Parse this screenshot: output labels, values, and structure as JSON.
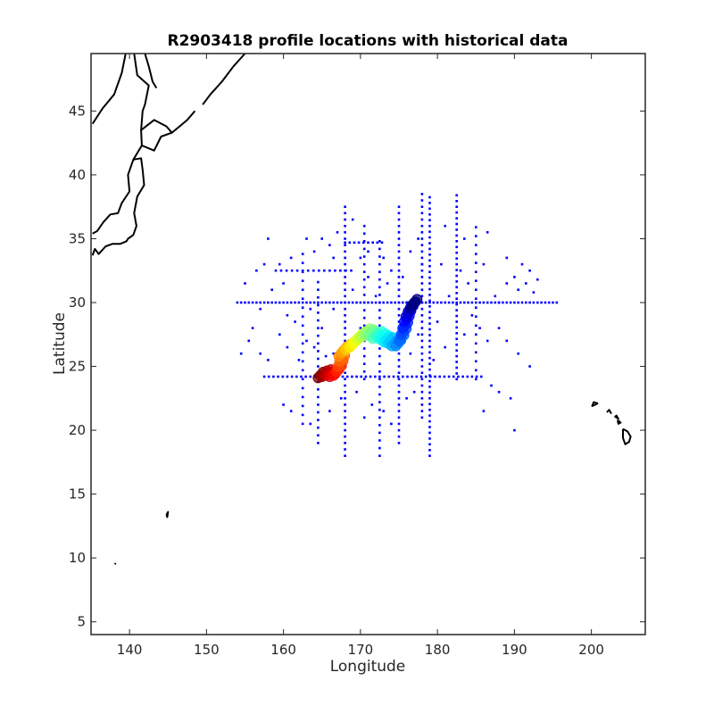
{
  "chart_data": {
    "type": "scatter",
    "title": "R2903418 profile locations with historical data",
    "xlabel": "Longitude",
    "ylabel": "Latitude",
    "xlim": [
      135,
      207
    ],
    "ylim": [
      4,
      49.5
    ],
    "xticks": [
      140,
      150,
      160,
      170,
      180,
      190,
      200
    ],
    "yticks": [
      5,
      10,
      15,
      20,
      25,
      30,
      35,
      40,
      45
    ],
    "grid": false,
    "colors": {
      "historical": "#0000ff",
      "coast": "#000000",
      "axes": "#262626"
    },
    "historical_transects": {
      "zonal": [
        {
          "lat": 30,
          "lon_range": [
            154,
            195.5
          ],
          "step": 0.5
        },
        {
          "lat": 24.2,
          "lon_range": [
            157.5,
            186
          ],
          "step": 0.6
        },
        {
          "lat": 32.5,
          "lon_range": [
            159,
            169
          ],
          "step": 0.7
        },
        {
          "lat": 34.7,
          "lon_range": [
            168,
            173
          ],
          "step": 0.6
        }
      ],
      "meridional": [
        {
          "lon": 179,
          "lat_range": [
            18,
            38.5
          ],
          "step": 0.45
        },
        {
          "lon": 182.5,
          "lat_range": [
            24,
            38.5
          ],
          "step": 0.45
        },
        {
          "lon": 175,
          "lat_range": [
            19,
            37.5
          ],
          "step": 0.5
        },
        {
          "lon": 168,
          "lat_range": [
            18,
            37.5
          ],
          "step": 0.5
        },
        {
          "lon": 164.5,
          "lat_range": [
            19,
            32
          ],
          "step": 0.6
        },
        {
          "lon": 172.5,
          "lat_range": [
            18,
            35
          ],
          "step": 0.6
        },
        {
          "lon": 178,
          "lat_range": [
            21,
            38.5
          ],
          "step": 0.5
        },
        {
          "lon": 162.5,
          "lat_range": [
            20.5,
            34
          ],
          "step": 0.7
        },
        {
          "lon": 185,
          "lat_range": [
            24,
            36
          ],
          "step": 0.7
        },
        {
          "lon": 170.5,
          "lat_range": [
            24,
            36.5
          ],
          "step": 0.6
        }
      ],
      "scatter": [
        [
          155,
          31.5
        ],
        [
          156,
          28
        ],
        [
          157,
          26
        ],
        [
          158,
          25.5
        ],
        [
          159.5,
          27.5
        ],
        [
          160.5,
          29
        ],
        [
          161.5,
          28.5
        ],
        [
          163,
          27
        ],
        [
          164,
          26.5
        ],
        [
          165.5,
          25.8
        ],
        [
          166.5,
          26
        ],
        [
          157,
          29.5
        ],
        [
          156.5,
          32.5
        ],
        [
          157.5,
          33
        ],
        [
          158.5,
          31
        ],
        [
          160,
          31.5
        ],
        [
          161,
          33.5
        ],
        [
          163,
          35
        ],
        [
          164,
          34
        ],
        [
          165,
          35
        ],
        [
          166,
          34.5
        ],
        [
          167,
          35.5
        ],
        [
          169,
          36.5
        ],
        [
          170,
          33.5
        ],
        [
          171,
          32
        ],
        [
          173.5,
          31.5
        ],
        [
          174,
          32.5
        ],
        [
          175.5,
          32
        ],
        [
          176.5,
          34
        ],
        [
          177.5,
          35
        ],
        [
          180.5,
          33
        ],
        [
          181,
          36
        ],
        [
          183.5,
          35
        ],
        [
          184,
          31.5
        ],
        [
          186,
          33
        ],
        [
          187.5,
          30.5
        ],
        [
          189,
          31.5
        ],
        [
          190,
          32
        ],
        [
          190.5,
          31
        ],
        [
          191,
          33
        ],
        [
          191.5,
          31.5
        ],
        [
          192,
          32.5
        ],
        [
          192.5,
          30.8
        ],
        [
          193,
          31.8
        ],
        [
          188,
          28
        ],
        [
          189,
          27
        ],
        [
          190.5,
          26
        ],
        [
          192,
          25
        ],
        [
          185.5,
          28
        ],
        [
          186.5,
          27
        ],
        [
          187,
          23.5
        ],
        [
          188,
          23
        ],
        [
          189.5,
          22.5
        ],
        [
          190,
          20
        ],
        [
          186,
          21.5
        ],
        [
          160,
          22
        ],
        [
          161,
          21.5
        ],
        [
          163.5,
          20.5
        ],
        [
          166,
          21.5
        ],
        [
          167.5,
          22.5
        ],
        [
          169.5,
          23
        ],
        [
          170.5,
          21
        ],
        [
          171.5,
          22
        ],
        [
          173,
          21.5
        ],
        [
          174,
          20.5
        ],
        [
          176,
          22.5
        ],
        [
          177,
          23
        ],
        [
          179.5,
          25.5
        ],
        [
          181,
          26.5
        ],
        [
          176.5,
          26
        ],
        [
          177.5,
          27.5
        ],
        [
          158,
          35
        ],
        [
          159.5,
          33
        ],
        [
          166.5,
          33.5
        ],
        [
          171,
          34
        ],
        [
          173,
          33.5
        ],
        [
          184.5,
          29
        ],
        [
          183.5,
          27.5
        ],
        [
          155.5,
          27
        ],
        [
          154.5,
          26
        ],
        [
          160.5,
          26.5
        ],
        [
          162,
          25.5
        ],
        [
          189,
          33.5
        ],
        [
          186.5,
          35.5
        ],
        [
          188,
          30
        ],
        [
          163.5,
          29.5
        ],
        [
          165,
          28
        ],
        [
          166.5,
          29.5
        ],
        [
          169,
          31
        ],
        [
          170,
          28
        ],
        [
          172,
          30.5
        ],
        [
          174,
          27.5
        ],
        [
          176,
          30
        ],
        [
          180,
          28.5
        ],
        [
          181.5,
          30.5
        ],
        [
          183,
          32.5
        ],
        [
          178,
          33
        ]
      ]
    },
    "profile_track": [
      [
        164.8,
        24.3
      ],
      [
        165.3,
        24.4
      ],
      [
        165.8,
        24.5
      ],
      [
        166.3,
        24.4
      ],
      [
        166.8,
        24.5
      ],
      [
        167.2,
        24.8
      ],
      [
        167.4,
        25.2
      ],
      [
        167.6,
        25.6
      ],
      [
        167.5,
        26.0
      ],
      [
        167.9,
        26.3
      ],
      [
        168.4,
        26.5
      ],
      [
        168.9,
        26.7
      ],
      [
        169.4,
        27.0
      ],
      [
        169.9,
        27.3
      ],
      [
        170.4,
        27.5
      ],
      [
        170.9,
        27.7
      ],
      [
        171.4,
        27.6
      ],
      [
        171.9,
        27.4
      ],
      [
        172.4,
        27.5
      ],
      [
        172.9,
        27.3
      ],
      [
        173.4,
        27.1
      ],
      [
        173.9,
        27.0
      ],
      [
        174.4,
        26.8
      ],
      [
        174.9,
        26.8
      ],
      [
        175.3,
        27.2
      ],
      [
        175.6,
        27.7
      ],
      [
        175.8,
        28.2
      ],
      [
        176.0,
        28.7
      ],
      [
        176.2,
        29.1
      ],
      [
        176.5,
        29.5
      ],
      [
        176.8,
        29.8
      ],
      [
        177.0,
        30.0
      ]
    ],
    "coastlines": [
      [
        [
          135.2,
          44
        ],
        [
          136.5,
          45.2
        ],
        [
          138,
          46.3
        ],
        [
          139,
          48
        ],
        [
          139.5,
          49.5
        ]
      ],
      [
        [
          140.6,
          49.5
        ],
        [
          141,
          47.8
        ],
        [
          142.5,
          47
        ],
        [
          142,
          45.5
        ],
        [
          141.7,
          45
        ],
        [
          141.5,
          43.5
        ],
        [
          141.6,
          42.3
        ],
        [
          140.5,
          41.2
        ],
        [
          139.8,
          40
        ],
        [
          140,
          38.7
        ],
        [
          139,
          37.8
        ],
        [
          138.5,
          37
        ],
        [
          137.5,
          36.9
        ],
        [
          136.6,
          36.3
        ],
        [
          135.8,
          35.6
        ],
        [
          135.2,
          35.4
        ]
      ],
      [
        [
          141.5,
          43.5
        ],
        [
          143.2,
          44.3
        ],
        [
          144.8,
          43.8
        ],
        [
          145.5,
          43.3
        ],
        [
          144.1,
          43
        ],
        [
          143.2,
          41.9
        ],
        [
          141.6,
          42.3
        ]
      ],
      [
        [
          142,
          49.5
        ],
        [
          142.5,
          48.5
        ],
        [
          143,
          47.3
        ],
        [
          143.5,
          46.8
        ]
      ],
      [
        [
          140.5,
          41.2
        ],
        [
          141.5,
          41.3
        ],
        [
          141.7,
          40.4
        ],
        [
          141.9,
          39.2
        ],
        [
          141,
          38.3
        ],
        [
          140.6,
          37
        ],
        [
          140.9,
          36
        ],
        [
          140.5,
          35.3
        ],
        [
          139.8,
          35.0
        ],
        [
          139.6,
          34.8
        ],
        [
          138.8,
          34.6
        ],
        [
          137.8,
          34.6
        ],
        [
          136.9,
          34.4
        ],
        [
          136,
          33.8
        ],
        [
          135.5,
          34.2
        ],
        [
          135.2,
          33.7
        ]
      ],
      [
        [
          145.5,
          43.3
        ],
        [
          146.5,
          43.8
        ],
        [
          147.5,
          44.3
        ],
        [
          148.5,
          45
        ]
      ],
      [
        [
          149.5,
          45.5
        ],
        [
          150.5,
          46.3
        ],
        [
          152,
          47.3
        ],
        [
          153.5,
          48.5
        ],
        [
          155,
          49.5
        ]
      ],
      [
        [
          144.8,
          13.4
        ],
        [
          145.0,
          13.6
        ],
        [
          144.9,
          13.2
        ],
        [
          144.8,
          13.4
        ]
      ],
      [
        [
          138.1,
          9.5
        ],
        [
          138.2,
          9.6
        ]
      ],
      [
        [
          200.5,
          22
        ],
        [
          200.1,
          21.9
        ],
        [
          200.3,
          22.2
        ],
        [
          200.8,
          22.1
        ],
        [
          200.5,
          22
        ]
      ],
      [
        [
          202,
          21.4
        ],
        [
          202.3,
          21.6
        ],
        [
          202.6,
          21.3
        ]
      ],
      [
        [
          203,
          21.1
        ],
        [
          203.5,
          20.9
        ],
        [
          203.2,
          21.2
        ]
      ],
      [
        [
          203.4,
          20.8
        ],
        [
          203.8,
          20.6
        ],
        [
          203.5,
          20.5
        ],
        [
          203.4,
          20.8
        ]
      ],
      [
        [
          204.1,
          20.1
        ],
        [
          204.7,
          19.9
        ],
        [
          205.1,
          19.5
        ],
        [
          204.9,
          19.1
        ],
        [
          204.4,
          18.9
        ],
        [
          204.1,
          19.4
        ],
        [
          204.1,
          20.1
        ]
      ]
    ]
  }
}
